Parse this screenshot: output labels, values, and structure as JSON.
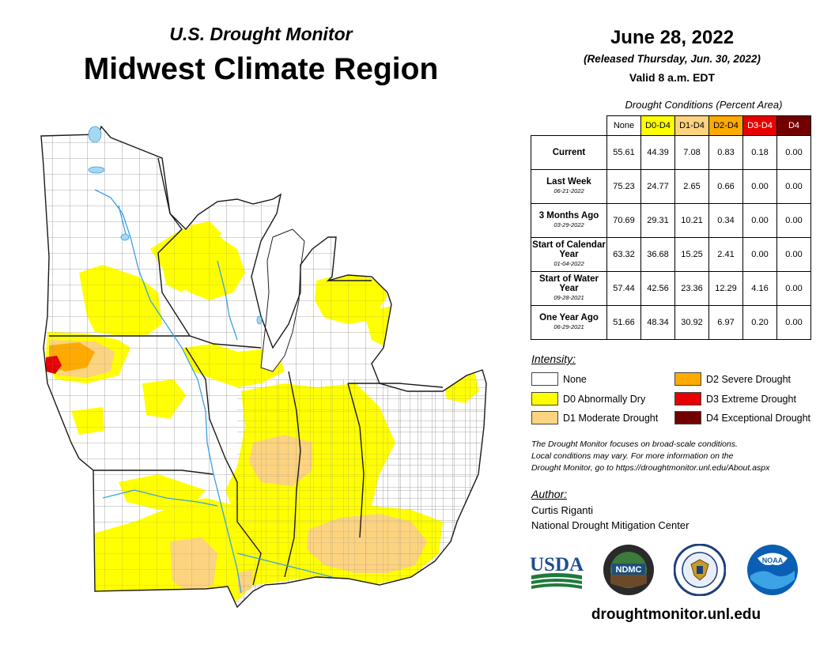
{
  "header": {
    "subtitle": "U.S. Drought Monitor",
    "title": "Midwest Climate Region",
    "date": "June 28, 2022",
    "released": "(Released Thursday, Jun. 30, 2022)",
    "valid": "Valid 8 a.m. EDT"
  },
  "table": {
    "caption": "Drought Conditions (Percent Area)",
    "columns": [
      {
        "label": "None",
        "color": "#ffffff"
      },
      {
        "label": "D0-D4",
        "color": "#ffff00"
      },
      {
        "label": "D1-D4",
        "color": "#fcd37f"
      },
      {
        "label": "D2-D4",
        "color": "#ffaa00"
      },
      {
        "label": "D3-D4",
        "color": "#e60000"
      },
      {
        "label": "D4",
        "color": "#730000"
      }
    ],
    "rows": [
      {
        "label": "Current",
        "date": "",
        "values": [
          "55.61",
          "44.39",
          "7.08",
          "0.83",
          "0.18",
          "0.00"
        ]
      },
      {
        "label": "Last Week",
        "date": "06-21-2022",
        "values": [
          "75.23",
          "24.77",
          "2.65",
          "0.66",
          "0.00",
          "0.00"
        ]
      },
      {
        "label": "3 Months Ago",
        "date": "03-29-2022",
        "values": [
          "70.69",
          "29.31",
          "10.21",
          "0.34",
          "0.00",
          "0.00"
        ]
      },
      {
        "label": "Start of Calendar Year",
        "date": "01-04-2022",
        "values": [
          "63.32",
          "36.68",
          "15.25",
          "2.41",
          "0.00",
          "0.00"
        ]
      },
      {
        "label": "Start of Water Year",
        "date": "09-28-2021",
        "values": [
          "57.44",
          "42.56",
          "23.36",
          "12.29",
          "4.16",
          "0.00"
        ]
      },
      {
        "label": "One Year Ago",
        "date": "06-29-2021",
        "values": [
          "51.66",
          "48.34",
          "30.92",
          "6.97",
          "0.20",
          "0.00"
        ]
      }
    ]
  },
  "legend": {
    "title": "Intensity:",
    "items": [
      {
        "label": "None",
        "color": "#ffffff"
      },
      {
        "label": "D0 Abnormally Dry",
        "color": "#ffff00"
      },
      {
        "label": "D1 Moderate Drought",
        "color": "#fcd37f"
      },
      {
        "label": "D2 Severe Drought",
        "color": "#ffaa00"
      },
      {
        "label": "D3 Extreme Drought",
        "color": "#e60000"
      },
      {
        "label": "D4 Exceptional Drought",
        "color": "#730000"
      }
    ]
  },
  "note": {
    "line1": "The Drought Monitor focuses on broad-scale conditions.",
    "line2": "Local conditions may vary. For more information on the",
    "line3": "Drought Monitor, go to https://droughtmonitor.unl.edu/About.aspx"
  },
  "author": {
    "title": "Author:",
    "name": "Curtis Riganti",
    "org": "National Drought Mitigation Center"
  },
  "logos": {
    "usda": "USDA",
    "ndmc": "NDMC",
    "noaa": "NOAA"
  },
  "website": "droughtmonitor.unl.edu",
  "colors": {
    "water": "#a6d8f0",
    "river": "#3aa0e0",
    "land": "#ffffff",
    "county_line": "#888888",
    "state_line": "#222222"
  }
}
